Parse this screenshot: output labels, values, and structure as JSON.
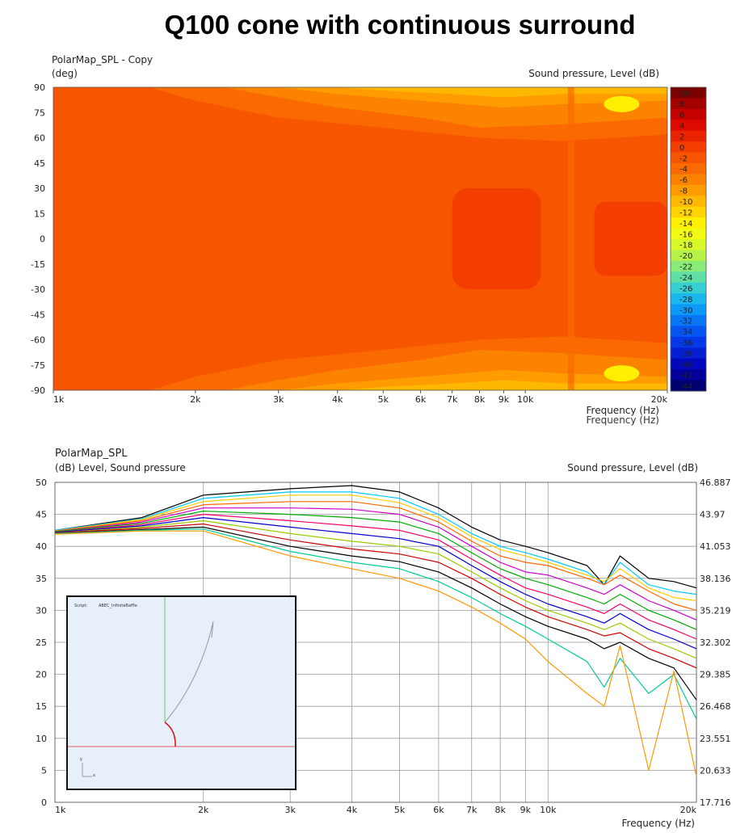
{
  "title": "Q100 cone with continuous surround",
  "chart_data": [
    {
      "type": "heatmap",
      "title": "PolarMap_SPL - Copy",
      "ylabel": "(deg)",
      "zlabel": "Sound pressure, Level  (dB)",
      "xlabel": "Frequency  (Hz)",
      "xscale": "log",
      "xlim": [
        1000,
        20000
      ],
      "ylim": [
        -90,
        90
      ],
      "x_ticks": [
        {
          "v": 1000,
          "t": "1k"
        },
        {
          "v": 2000,
          "t": "2k"
        },
        {
          "v": 3000,
          "t": "3k"
        },
        {
          "v": 4000,
          "t": "4k"
        },
        {
          "v": 5000,
          "t": "5k"
        },
        {
          "v": 6000,
          "t": "6k"
        },
        {
          "v": 7000,
          "t": "7k"
        },
        {
          "v": 8000,
          "t": "8k"
        },
        {
          "v": 9000,
          "t": "9k"
        },
        {
          "v": 10000,
          "t": "10k"
        },
        {
          "v": 20000,
          "t": "20k"
        }
      ],
      "y_ticks": [
        "90",
        "75",
        "60",
        "45",
        "30",
        "15",
        "0",
        "-15",
        "-30",
        "-45",
        "-60",
        "-75",
        "-90"
      ],
      "colorbar_labels": [
        "10",
        "8",
        "6",
        "4",
        "2",
        "0",
        "-2",
        "-4",
        "-6",
        "-8",
        "-10",
        "-12",
        "-14",
        "-16",
        "-18",
        "-20",
        "-22",
        "-24",
        "-26",
        "-28",
        "-30",
        "-32",
        "-34",
        "-36",
        "-38",
        "-40",
        "-42",
        "-44"
      ],
      "colorbar_colors": [
        "#7d0000",
        "#a30000",
        "#c40000",
        "#dc0a00",
        "#ea2400",
        "#f33e00",
        "#f75500",
        "#fa6a00",
        "#fc8300",
        "#fe9c00",
        "#ffb800",
        "#ffd400",
        "#ffef00",
        "#f2fa14",
        "#d8f82a",
        "#b7f24a",
        "#8aeb78",
        "#5fdfa6",
        "#37cfd2",
        "#1ab7ec",
        "#0c98f6",
        "#0877f7",
        "#0656f2",
        "#0538e6",
        "#041fd4",
        "#0308bc",
        "#020098",
        "#010070"
      ],
      "contour_levels_at_0deg": {
        "freq_hz": [
          1000,
          2000,
          3000,
          5000,
          7000,
          10000,
          13000,
          20000
        ],
        "level_db": [
          -2,
          -2,
          -2,
          -2,
          0,
          0,
          -2,
          -2
        ]
      }
    },
    {
      "type": "line",
      "title": "PolarMap_SPL",
      "ylabel": "(dB)  Level, Sound pressure",
      "ylabel_right": "Sound pressure, Level  (dB)",
      "xlabel": "Frequency  (Hz)",
      "xscale": "log",
      "xlim": [
        1000,
        20000
      ],
      "ylim": [
        0,
        50
      ],
      "y_ticks": [
        "50",
        "45",
        "40",
        "35",
        "30",
        "25",
        "20",
        "15",
        "10",
        "5",
        "0"
      ],
      "y_ticks_right": [
        "46.887",
        "43.97",
        "41.053",
        "38.136",
        "35.219",
        "32.302",
        "29.385",
        "26.468",
        "23.551",
        "20.633",
        "17.716"
      ],
      "x_ticks": [
        {
          "v": 1000,
          "t": "1k"
        },
        {
          "v": 2000,
          "t": "2k"
        },
        {
          "v": 3000,
          "t": "3k"
        },
        {
          "v": 4000,
          "t": "4k"
        },
        {
          "v": 5000,
          "t": "5k"
        },
        {
          "v": 6000,
          "t": "6k"
        },
        {
          "v": 7000,
          "t": "7k"
        },
        {
          "v": 8000,
          "t": "8k"
        },
        {
          "v": 9000,
          "t": "9k"
        },
        {
          "v": 10000,
          "t": "10k"
        },
        {
          "v": 20000,
          "t": "20k"
        }
      ],
      "x": [
        1000,
        1500,
        2000,
        3000,
        4000,
        5000,
        6000,
        7000,
        8000,
        9000,
        10000,
        12000,
        13000,
        14000,
        16000,
        18000,
        20000
      ],
      "series": [
        {
          "color": "#000000",
          "values": [
            42.5,
            44.5,
            48.0,
            49.0,
            49.5,
            48.5,
            46.0,
            43.0,
            41.0,
            40.0,
            39.0,
            37.0,
            34.0,
            38.5,
            35.0,
            34.5,
            33.5
          ]
        },
        {
          "color": "#00c8ff",
          "values": [
            42.5,
            44.3,
            47.5,
            48.5,
            48.5,
            47.5,
            45.0,
            42.0,
            40.0,
            39.0,
            38.0,
            36.0,
            34.0,
            37.5,
            34.0,
            33.0,
            32.5
          ]
        },
        {
          "color": "#ffcc00",
          "values": [
            42.4,
            44.2,
            47.0,
            48.0,
            48.0,
            46.8,
            44.5,
            41.5,
            39.5,
            38.5,
            37.5,
            35.5,
            34.5,
            36.5,
            33.5,
            32.0,
            31.5
          ]
        },
        {
          "color": "#ff6600",
          "values": [
            42.4,
            44.0,
            46.5,
            47.0,
            47.0,
            46.0,
            43.8,
            40.8,
            38.5,
            37.5,
            37.0,
            35.0,
            34.0,
            35.5,
            33.0,
            31.0,
            30.0
          ]
        },
        {
          "color": "#cc00cc",
          "values": [
            42.3,
            43.8,
            46.0,
            46.0,
            45.8,
            45.0,
            43.0,
            40.0,
            37.5,
            36.0,
            35.5,
            33.5,
            32.5,
            34.0,
            31.5,
            30.0,
            28.5
          ]
        },
        {
          "color": "#00aa00",
          "values": [
            42.3,
            43.6,
            45.5,
            45.0,
            44.5,
            43.8,
            42.0,
            39.0,
            36.5,
            35.0,
            34.0,
            32.0,
            31.0,
            32.5,
            30.0,
            28.5,
            27.0
          ]
        },
        {
          "color": "#ff0066",
          "values": [
            42.2,
            43.4,
            45.0,
            44.0,
            43.2,
            42.5,
            41.0,
            38.0,
            35.5,
            33.5,
            32.5,
            30.5,
            29.5,
            31.0,
            28.5,
            27.0,
            25.5
          ]
        },
        {
          "color": "#0000cc",
          "values": [
            42.2,
            43.2,
            44.5,
            43.0,
            42.0,
            41.2,
            40.0,
            37.0,
            34.5,
            32.5,
            31.0,
            29.0,
            28.0,
            29.5,
            27.0,
            25.5,
            24.0
          ]
        },
        {
          "color": "#99cc00",
          "values": [
            42.1,
            43.0,
            44.0,
            42.0,
            40.8,
            40.0,
            38.8,
            36.0,
            33.5,
            31.5,
            30.0,
            28.0,
            27.0,
            28.0,
            25.5,
            24.0,
            22.5
          ]
        },
        {
          "color": "#cc0000",
          "values": [
            42.1,
            42.8,
            43.5,
            41.0,
            39.6,
            38.8,
            37.5,
            35.0,
            32.5,
            30.5,
            29.0,
            27.0,
            26.0,
            26.5,
            24.0,
            22.5,
            21.0
          ]
        },
        {
          "color": "#000000",
          "values": [
            42.0,
            42.6,
            43.0,
            40.0,
            38.5,
            37.6,
            36.0,
            33.5,
            31.0,
            29.0,
            27.5,
            25.5,
            24.0,
            25.0,
            22.5,
            21.0,
            16.0
          ]
        },
        {
          "color": "#00cc99",
          "values": [
            42.0,
            42.5,
            42.7,
            39.2,
            37.5,
            36.5,
            34.5,
            32.0,
            29.5,
            27.5,
            25.5,
            22.0,
            18.0,
            22.5,
            17.0,
            20.0,
            13.0
          ]
        },
        {
          "color": "#ff9900",
          "values": [
            41.9,
            42.4,
            42.4,
            38.5,
            36.5,
            35.0,
            33.0,
            30.5,
            28.0,
            25.5,
            22.0,
            17.0,
            15.0,
            24.5,
            5.0,
            20.5,
            4.0
          ]
        }
      ]
    }
  ],
  "inset": {
    "script_label": "Script:",
    "script_value": "ABEC_InfiniteBaffle",
    "axis_y": "y",
    "axis_x": "x"
  }
}
